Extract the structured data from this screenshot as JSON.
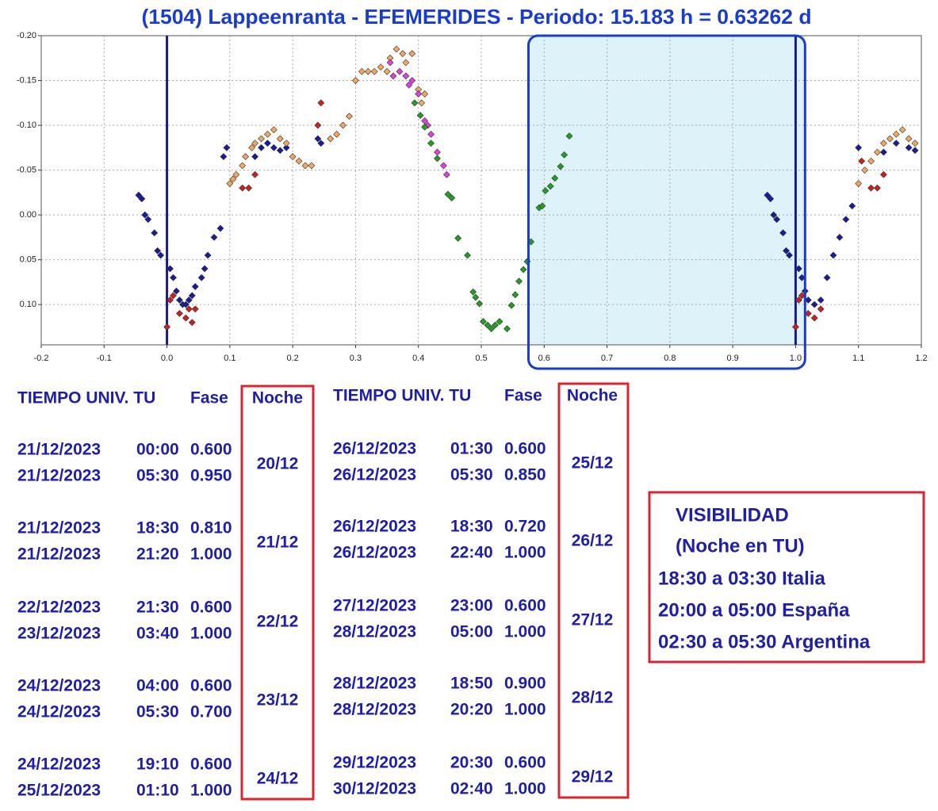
{
  "chart_data": {
    "type": "scatter",
    "title": "(1504) Lappeenranta - EFEMERIDES - Periodo: 15.183 h = 0.63262 d",
    "xlim": [
      -0.2,
      1.2
    ],
    "ylim": [
      -0.2,
      0.145
    ],
    "y_inverted": true,
    "grid": true,
    "xticks": [
      -0.2,
      -0.1,
      {
        "value": 0,
        "label": "0.0"
      },
      0.1,
      0.2,
      0.3,
      0.4,
      0.5,
      0.6,
      0.7,
      0.8,
      0.9,
      {
        "value": 1,
        "label": "1.0"
      },
      1.1,
      1.2
    ],
    "yticks": [
      {
        "value": -0.2,
        "label": "-0.20"
      },
      {
        "value": -0.15,
        "label": "-0.15"
      },
      {
        "value": -0.1,
        "label": "-0.10"
      },
      {
        "value": -0.05,
        "label": "-0.05"
      },
      {
        "value": 0,
        "label": "0.00"
      },
      {
        "value": 0.05,
        "label": "0.05"
      },
      {
        "value": 0.1,
        "label": "0.10"
      }
    ],
    "vlines": [
      0,
      1
    ],
    "vline_color": "#1a1a90",
    "highlight_xrange": [
      0.575,
      1.015
    ],
    "highlight_color": "#def2fa",
    "highlight_border": "#1a3ccc",
    "series": [
      {
        "color": "#1a1aa0",
        "x": [
          -0.045,
          -0.04,
          -0.035,
          -0.03,
          -0.02,
          -0.015,
          -0.01,
          0.005,
          0.01,
          0.015,
          0.02,
          0.025,
          0.03,
          0.035,
          0.04,
          0.045,
          0.055,
          0.06,
          0.065,
          0.075,
          0.085,
          0.09,
          0.095,
          0.14,
          0.15,
          0.16,
          0.17,
          0.18,
          0.19,
          0.24,
          0.245,
          0.955,
          0.96,
          0.965,
          0.97,
          0.98,
          0.985,
          0.99,
          1.005,
          1.01,
          1.015,
          1.02,
          1.03,
          1.04,
          1.05,
          1.06,
          1.07,
          1.08,
          1.09,
          1.1,
          1.14,
          1.16,
          1.18,
          1.19
        ],
        "values": [
          -0.022,
          -0.018,
          0.0,
          0.005,
          0.02,
          0.04,
          0.045,
          0.06,
          0.07,
          0.085,
          0.095,
          0.1,
          0.1,
          0.095,
          0.09,
          0.08,
          0.07,
          0.06,
          0.045,
          0.025,
          0.015,
          -0.065,
          -0.075,
          -0.065,
          -0.075,
          -0.08,
          -0.075,
          -0.072,
          -0.075,
          -0.085,
          -0.08,
          -0.022,
          -0.018,
          0.0,
          0.005,
          0.02,
          0.04,
          0.045,
          0.06,
          0.07,
          0.085,
          0.095,
          0.1,
          0.095,
          0.07,
          0.045,
          0.025,
          0.005,
          -0.01,
          -0.075,
          -0.07,
          -0.08,
          -0.075,
          -0.072
        ]
      },
      {
        "color": "#cc2020",
        "x": [
          0.0,
          0.005,
          0.01,
          0.02,
          0.03,
          0.035,
          0.04,
          0.045,
          0.12,
          0.13,
          0.14,
          0.24,
          0.245,
          1.0,
          1.005,
          1.01,
          1.02,
          1.03,
          1.04,
          1.105,
          1.12,
          1.13,
          1.14
        ],
        "values": [
          0.125,
          0.095,
          0.09,
          0.11,
          0.115,
          0.105,
          0.12,
          0.105,
          -0.03,
          -0.03,
          -0.045,
          -0.1,
          -0.125,
          0.125,
          0.095,
          0.09,
          0.11,
          0.115,
          0.105,
          -0.06,
          -0.03,
          -0.03,
          -0.045
        ]
      },
      {
        "color": "#f0a860",
        "x": [
          0.1,
          0.105,
          0.11,
          0.12,
          0.125,
          0.135,
          0.14,
          0.15,
          0.16,
          0.17,
          0.18,
          0.19,
          0.2,
          0.21,
          0.22,
          0.23,
          0.26,
          0.27,
          0.28,
          0.29,
          0.3,
          0.31,
          0.32,
          0.33,
          0.34,
          0.35,
          0.355,
          0.365,
          0.375,
          0.38,
          0.39,
          0.4,
          0.405,
          0.41,
          1.1,
          1.11,
          1.12,
          1.13,
          1.14,
          1.15,
          1.16,
          1.17,
          1.18,
          1.19
        ],
        "values": [
          -0.035,
          -0.04,
          -0.045,
          -0.055,
          -0.065,
          -0.075,
          -0.08,
          -0.085,
          -0.09,
          -0.095,
          -0.085,
          -0.08,
          -0.065,
          -0.06,
          -0.055,
          -0.055,
          -0.085,
          -0.09,
          -0.1,
          -0.11,
          -0.15,
          -0.16,
          -0.16,
          -0.16,
          -0.165,
          -0.16,
          -0.175,
          -0.185,
          -0.18,
          -0.17,
          -0.18,
          -0.14,
          -0.125,
          -0.135,
          -0.035,
          -0.05,
          -0.06,
          -0.07,
          -0.08,
          -0.085,
          -0.09,
          -0.095,
          -0.085,
          -0.08
        ]
      },
      {
        "color": "#e040e0",
        "x": [
          0.355,
          0.36,
          0.37,
          0.38,
          0.385,
          0.39,
          0.4,
          0.41,
          0.415,
          0.42,
          0.43,
          0.44,
          0.445
        ],
        "values": [
          -0.17,
          -0.155,
          -0.16,
          -0.155,
          -0.145,
          -0.15,
          -0.135,
          -0.105,
          -0.1,
          -0.09,
          -0.07,
          -0.055,
          -0.045
        ]
      },
      {
        "color": "#20a020",
        "x": [
          0.394,
          0.403,
          0.41,
          0.42,
          0.43,
          0.447,
          0.453,
          0.463,
          0.478,
          0.487,
          0.491,
          0.497,
          0.503,
          0.51,
          0.516,
          0.522,
          0.529,
          0.541,
          0.548,
          0.554,
          0.56,
          0.567,
          0.573,
          0.579,
          0.592,
          0.597,
          0.602,
          0.61,
          0.617,
          0.626,
          0.632,
          0.64
        ],
        "values": [
          -0.125,
          -0.111,
          -0.098,
          -0.08,
          -0.063,
          -0.023,
          -0.019,
          0.026,
          0.045,
          0.086,
          0.092,
          0.099,
          0.119,
          0.123,
          0.127,
          0.123,
          0.119,
          0.127,
          0.101,
          0.089,
          0.074,
          0.061,
          0.052,
          0.03,
          -0.008,
          -0.01,
          -0.027,
          -0.032,
          -0.041,
          -0.054,
          -0.067,
          -0.088
        ]
      }
    ]
  },
  "tables": [
    {
      "headers": [
        "TIEMPO UNIV. TU",
        "Fase",
        "Noche"
      ],
      "groups": [
        {
          "rows": [
            [
              "21/12/2023",
              "00:00",
              "0.600"
            ],
            [
              "21/12/2023",
              "05:30",
              "0.950"
            ]
          ],
          "night": "20/12"
        },
        {
          "rows": [
            [
              "21/12/2023",
              "18:30",
              "0.810"
            ],
            [
              "21/12/2023",
              "21:20",
              "1.000"
            ]
          ],
          "night": "21/12"
        },
        {
          "rows": [
            [
              "22/12/2023",
              "21:30",
              "0.600"
            ],
            [
              "23/12/2023",
              "03:40",
              "1.000"
            ]
          ],
          "night": "22/12"
        },
        {
          "rows": [
            [
              "24/12/2023",
              "04:00",
              "0.600"
            ],
            [
              "24/12/2023",
              "05:30",
              "0.700"
            ]
          ],
          "night": "23/12"
        },
        {
          "rows": [
            [
              "24/12/2023",
              "19:10",
              "0.600"
            ],
            [
              "25/12/2023",
              "01:10",
              "1.000"
            ]
          ],
          "night": "24/12"
        }
      ]
    },
    {
      "headers": [
        "TIEMPO UNIV. TU",
        "Fase",
        "Noche"
      ],
      "groups": [
        {
          "rows": [
            [
              "26/12/2023",
              "01:30",
              "0.600"
            ],
            [
              "26/12/2023",
              "05:30",
              "0.850"
            ]
          ],
          "night": "25/12"
        },
        {
          "rows": [
            [
              "26/12/2023",
              "18:30",
              "0.720"
            ],
            [
              "26/12/2023",
              "22:40",
              "1.000"
            ]
          ],
          "night": "26/12"
        },
        {
          "rows": [
            [
              "27/12/2023",
              "23:00",
              "0.600"
            ],
            [
              "28/12/2023",
              "05:00",
              "1.000"
            ]
          ],
          "night": "27/12"
        },
        {
          "rows": [
            [
              "28/12/2023",
              "18:50",
              "0.900"
            ],
            [
              "28/12/2023",
              "20:20",
              "1.000"
            ]
          ],
          "night": "28/12"
        },
        {
          "rows": [
            [
              "29/12/2023",
              "20:30",
              "0.600"
            ],
            [
              "30/12/2023",
              "02:40",
              "1.000"
            ]
          ],
          "night": "29/12"
        }
      ]
    }
  ],
  "visibility": {
    "title": [
      "VISIBILIDAD",
      "(Noche en TU)"
    ],
    "lines": [
      "18:30 a 03:30 Italia",
      "20:00 a 05:00 España",
      "02:30 a 05:30 Argentina"
    ]
  }
}
